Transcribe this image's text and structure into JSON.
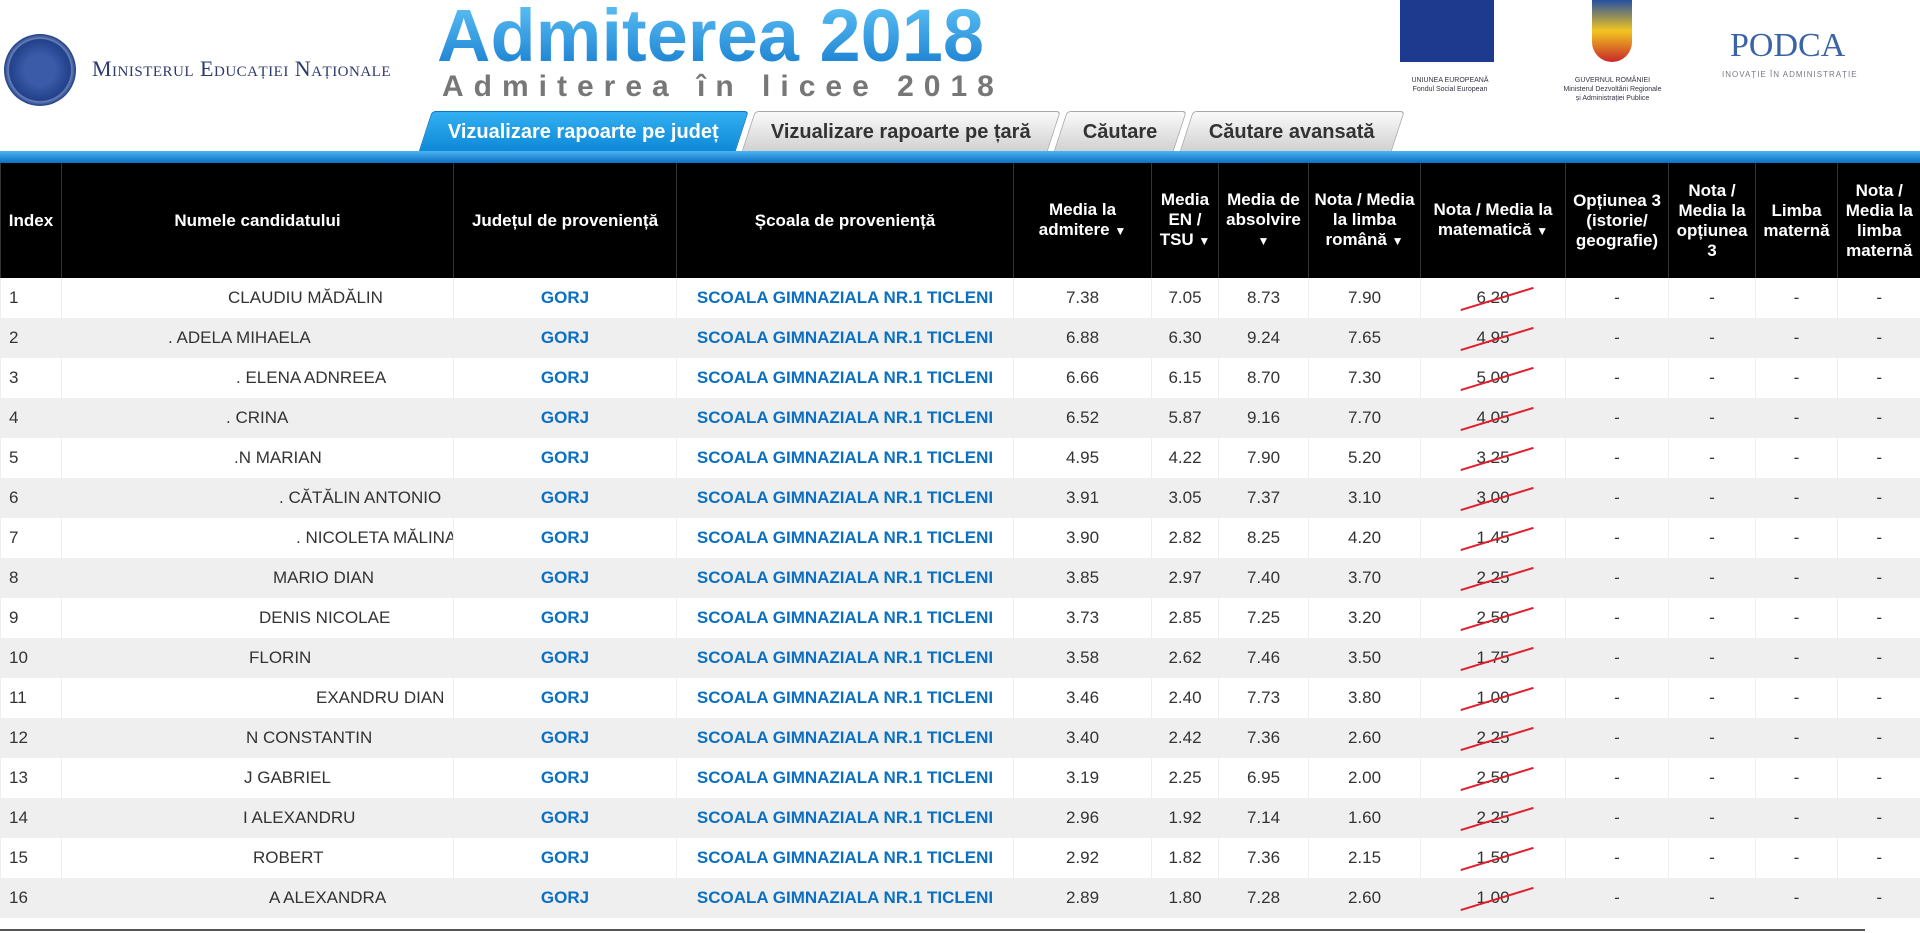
{
  "header": {
    "ministry": "Ministerul Educației Naționale",
    "brand": "Admiterea 2018",
    "subtitle": "Admiterea în licee 2018",
    "eu_caption": [
      "UNIUNEA EUROPEANĂ",
      "Fondul Social European"
    ],
    "gov_caption": [
      "GUVERNUL ROMÂNIEI",
      "Ministerul Dezvoltării Regionale",
      "și Administrației Publice"
    ],
    "podca": "PODCA",
    "podca_tagline": "INOVAȚIE ÎN ADMINISTRAȚIE"
  },
  "tabs": [
    {
      "label": "Vizualizare rapoarte pe județ",
      "active": true
    },
    {
      "label": "Vizualizare rapoarte pe țară"
    },
    {
      "label": "Căutare"
    },
    {
      "label": "Căutare avansată"
    }
  ],
  "columns": [
    "Index",
    "Numele candidatului",
    "Județul de proveniență",
    "Școala de proveniență",
    "Media la admitere",
    "Media EN / TSU",
    "Media de absolvire",
    "Nota / Media la limba română",
    "Nota / Media la matematică",
    "Opțiunea 3 (istorie/ geografie)",
    "Nota / Media la opțiunea 3",
    "Limba maternă",
    "Nota / Media la limba maternă"
  ],
  "sort_arrow": "▼",
  "rows": [
    [
      "1",
      "CLAUDIU MĂDĂLIN",
      "GORJ",
      "SCOALA GIMNAZIALA NR.1 TICLENI",
      "7.38",
      "7.05",
      "8.73",
      "7.90",
      "6.20",
      "-",
      "-",
      "-",
      "-"
    ],
    [
      "2",
      ". ADELA MIHAELA",
      "GORJ",
      "SCOALA GIMNAZIALA NR.1 TICLENI",
      "6.88",
      "6.30",
      "9.24",
      "7.65",
      "4.95",
      "-",
      "-",
      "-",
      "-"
    ],
    [
      "3",
      ". ELENA ADNREEA",
      "GORJ",
      "SCOALA GIMNAZIALA NR.1 TICLENI",
      "6.66",
      "6.15",
      "8.70",
      "7.30",
      "5.00",
      "-",
      "-",
      "-",
      "-"
    ],
    [
      "4",
      ". CRINA",
      "GORJ",
      "SCOALA GIMNAZIALA NR.1 TICLENI",
      "6.52",
      "5.87",
      "9.16",
      "7.70",
      "4.05",
      "-",
      "-",
      "-",
      "-"
    ],
    [
      "5",
      ".N MARIAN",
      "GORJ",
      "SCOALA GIMNAZIALA NR.1 TICLENI",
      "4.95",
      "4.22",
      "7.90",
      "5.20",
      "3.25",
      "-",
      "-",
      "-",
      "-"
    ],
    [
      "6",
      ". CĂTĂLIN ANTONIO",
      "GORJ",
      "SCOALA GIMNAZIALA NR.1 TICLENI",
      "3.91",
      "3.05",
      "7.37",
      "3.10",
      "3.00",
      "-",
      "-",
      "-",
      "-"
    ],
    [
      "7",
      ". NICOLETA MĂLINA",
      "GORJ",
      "SCOALA GIMNAZIALA NR.1 TICLENI",
      "3.90",
      "2.82",
      "8.25",
      "4.20",
      "1.45",
      "-",
      "-",
      "-",
      "-"
    ],
    [
      "8",
      "MARIO DIAN",
      "GORJ",
      "SCOALA GIMNAZIALA NR.1 TICLENI",
      "3.85",
      "2.97",
      "7.40",
      "3.70",
      "2.25",
      "-",
      "-",
      "-",
      "-"
    ],
    [
      "9",
      "DENIS NICOLAE",
      "GORJ",
      "SCOALA GIMNAZIALA NR.1 TICLENI",
      "3.73",
      "2.85",
      "7.25",
      "3.20",
      "2.50",
      "-",
      "-",
      "-",
      "-"
    ],
    [
      "10",
      "FLORIN",
      "GORJ",
      "SCOALA GIMNAZIALA NR.1 TICLENI",
      "3.58",
      "2.62",
      "7.46",
      "3.50",
      "1.75",
      "-",
      "-",
      "-",
      "-"
    ],
    [
      "11",
      "EXANDRU DIAN",
      "GORJ",
      "SCOALA GIMNAZIALA NR.1 TICLENI",
      "3.46",
      "2.40",
      "7.73",
      "3.80",
      "1.00",
      "-",
      "-",
      "-",
      "-"
    ],
    [
      "12",
      "N CONSTANTIN",
      "GORJ",
      "SCOALA GIMNAZIALA NR.1 TICLENI",
      "3.40",
      "2.42",
      "7.36",
      "2.60",
      "2.25",
      "-",
      "-",
      "-",
      "-"
    ],
    [
      "13",
      "J GABRIEL",
      "GORJ",
      "SCOALA GIMNAZIALA NR.1 TICLENI",
      "3.19",
      "2.25",
      "6.95",
      "2.00",
      "2.50",
      "-",
      "-",
      "-",
      "-"
    ],
    [
      "14",
      "I ALEXANDRU",
      "GORJ",
      "SCOALA GIMNAZIALA NR.1 TICLENI",
      "2.96",
      "1.92",
      "7.14",
      "1.60",
      "2.25",
      "-",
      "-",
      "-",
      "-"
    ],
    [
      "15",
      "ROBERT",
      "GORJ",
      "SCOALA GIMNAZIALA NR.1 TICLENI",
      "2.92",
      "1.82",
      "7.36",
      "2.15",
      "1.50",
      "-",
      "-",
      "-",
      "-"
    ],
    [
      "16",
      "A ALEXANDRA",
      "GORJ",
      "SCOALA GIMNAZIALA NR.1 TICLENI",
      "2.89",
      "1.80",
      "7.28",
      "2.60",
      "1.00",
      "-",
      "-",
      "-",
      "-"
    ]
  ]
}
